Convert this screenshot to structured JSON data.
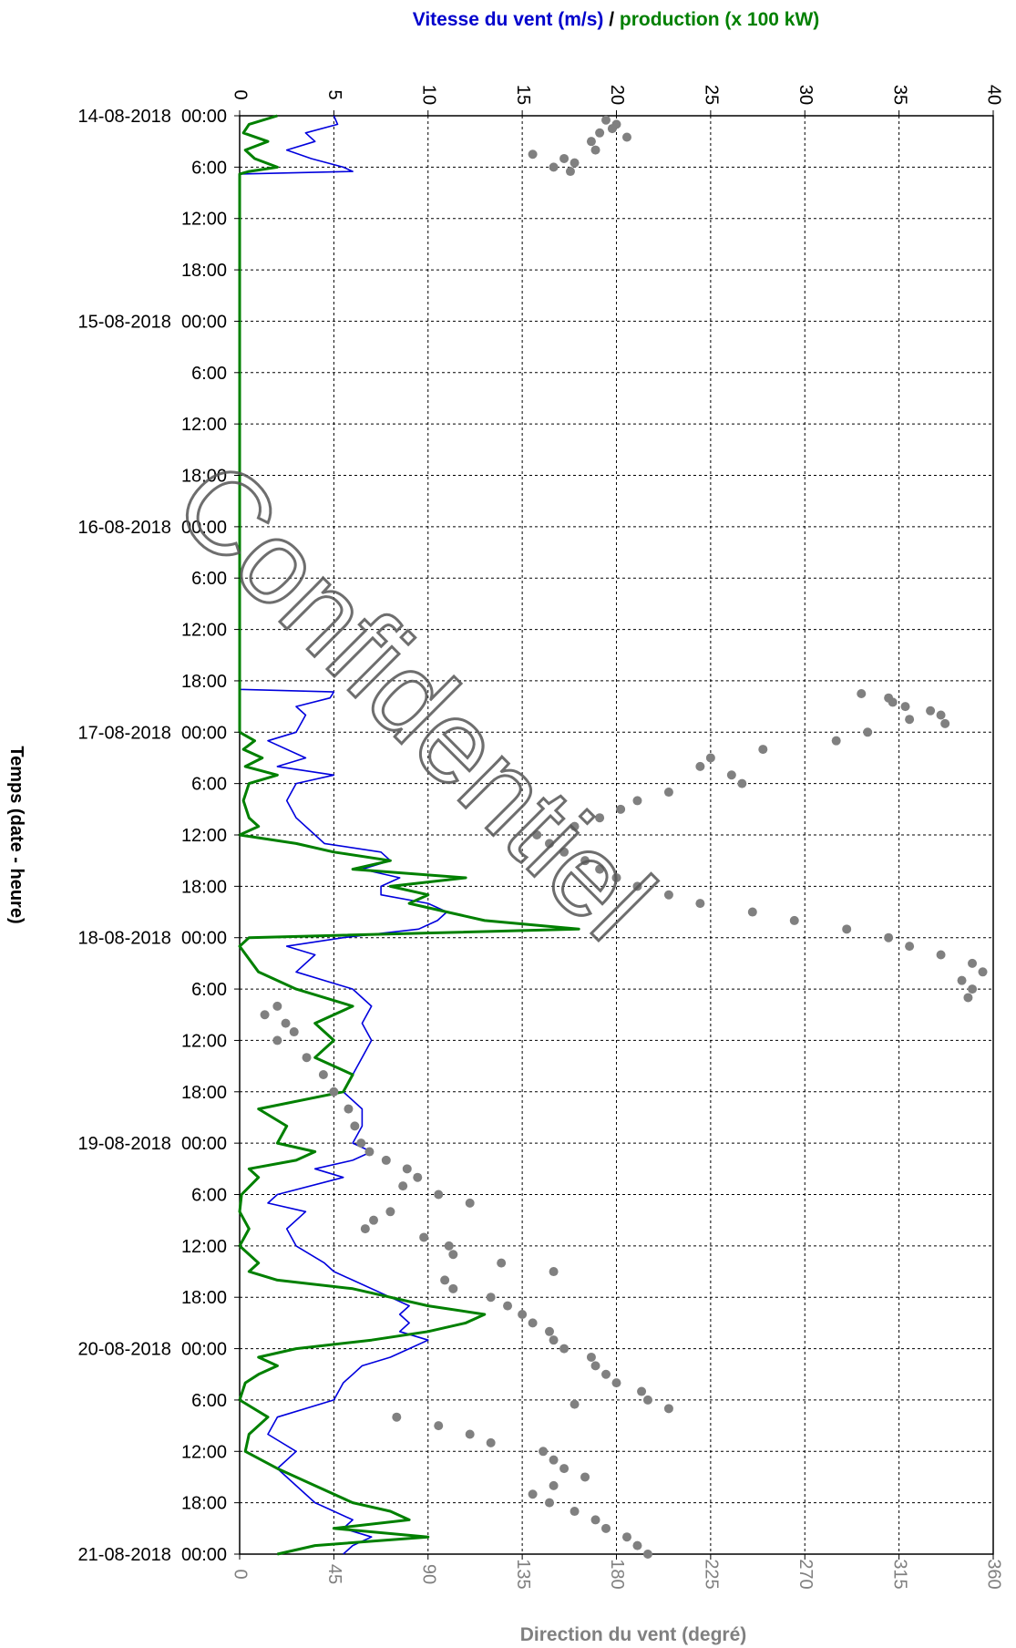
{
  "chart_data": {
    "type": "line",
    "watermark": "Confidentiel",
    "top_axis": {
      "title_parts": [
        {
          "text": "Vitesse du vent (m/s)",
          "color": "#0000cc"
        },
        {
          "text": " / ",
          "color": "#000000"
        },
        {
          "text": "production (x 100 kW)",
          "color": "#008000"
        }
      ],
      "range": [
        0,
        40
      ],
      "ticks": [
        0,
        5,
        10,
        15,
        20,
        25,
        30,
        35,
        40
      ]
    },
    "bottom_axis": {
      "title": "Direction du vent (degré)",
      "range": [
        0,
        360
      ],
      "ticks": [
        0,
        45,
        90,
        135,
        180,
        225,
        270,
        315,
        360
      ]
    },
    "left_axis": {
      "title": "Temps (date - heure)",
      "range_hours": [
        0,
        168
      ],
      "tick_labels": [
        "14-08-2018  00:00",
        "6:00",
        "12:00",
        "18:00",
        "15-08-2018  00:00",
        "6:00",
        "12:00",
        "18:00",
        "16-08-2018  00:00",
        "6:00",
        "12:00",
        "18:00",
        "17-08-2018  00:00",
        "6:00",
        "12:00",
        "18:00",
        "18-08-2018  00:00",
        "6:00",
        "12:00",
        "18:00",
        "19-08-2018  00:00",
        "6:00",
        "12:00",
        "18:00",
        "20-08-2018  00:00",
        "6:00",
        "12:00",
        "18:00",
        "21-08-2018  00:00"
      ]
    },
    "grid": true,
    "series": [
      {
        "name": "Vitesse du vent (m/s)",
        "color": "#0000dd",
        "axis": "top",
        "points": [
          [
            0,
            5
          ],
          [
            1,
            5.2
          ],
          [
            2,
            3.5
          ],
          [
            3,
            4
          ],
          [
            4,
            2.5
          ],
          [
            5,
            3.8
          ],
          [
            6,
            5.5
          ],
          [
            6.5,
            6
          ],
          [
            6.8,
            0
          ],
          [
            67,
            0
          ],
          [
            67.3,
            5
          ],
          [
            68,
            4.8
          ],
          [
            69,
            3
          ],
          [
            70,
            3.5
          ],
          [
            72,
            3
          ],
          [
            73,
            1.5
          ],
          [
            75,
            3.5
          ],
          [
            76,
            2
          ],
          [
            77,
            5
          ],
          [
            78,
            3
          ],
          [
            80,
            2.5
          ],
          [
            82,
            3
          ],
          [
            84,
            4
          ],
          [
            85,
            4.5
          ],
          [
            86,
            7.5
          ],
          [
            87,
            8
          ],
          [
            88,
            6.5
          ],
          [
            89,
            8.5
          ],
          [
            90,
            7.5
          ],
          [
            91,
            7.5
          ],
          [
            92,
            10
          ],
          [
            93,
            11
          ],
          [
            94,
            10.5
          ],
          [
            95,
            9.5
          ],
          [
            96,
            5.5
          ],
          [
            97,
            2.5
          ],
          [
            98,
            4
          ],
          [
            100,
            3
          ],
          [
            102,
            6
          ],
          [
            104,
            7
          ],
          [
            106,
            6.5
          ],
          [
            108,
            7
          ],
          [
            110,
            6.5
          ],
          [
            112,
            6
          ],
          [
            114,
            5.5
          ],
          [
            116,
            6.5
          ],
          [
            118,
            6.5
          ],
          [
            120,
            6
          ],
          [
            121,
            7
          ],
          [
            122,
            6
          ],
          [
            123,
            4
          ],
          [
            124,
            5.5
          ],
          [
            126,
            2
          ],
          [
            127,
            1.5
          ],
          [
            128,
            3.5
          ],
          [
            130,
            2.5
          ],
          [
            132,
            3
          ],
          [
            134,
            4.5
          ],
          [
            135,
            5
          ],
          [
            136,
            6
          ],
          [
            138,
            8
          ],
          [
            139,
            9
          ],
          [
            140,
            8.5
          ],
          [
            141,
            9
          ],
          [
            142,
            8.5
          ],
          [
            143,
            10
          ],
          [
            144,
            9
          ],
          [
            145,
            8
          ],
          [
            146,
            6.5
          ],
          [
            147,
            6
          ],
          [
            148,
            5.5
          ],
          [
            150,
            5
          ],
          [
            152,
            2
          ],
          [
            154,
            1.5
          ],
          [
            156,
            3
          ],
          [
            158,
            2
          ],
          [
            160,
            3
          ],
          [
            162,
            4
          ],
          [
            163,
            5
          ],
          [
            164,
            6
          ],
          [
            165,
            5.5
          ],
          [
            166,
            7
          ],
          [
            167,
            6
          ],
          [
            168,
            5.5
          ]
        ]
      },
      {
        "name": "production (x 100 kW)",
        "color": "#008000",
        "axis": "top",
        "points": [
          [
            0,
            2
          ],
          [
            1,
            0.5
          ],
          [
            2,
            0.2
          ],
          [
            3,
            1.5
          ],
          [
            4,
            0.3
          ],
          [
            5,
            0.8
          ],
          [
            6,
            2
          ],
          [
            6.5,
            0.5
          ],
          [
            6.8,
            0
          ],
          [
            67,
            0
          ],
          [
            72,
            0
          ],
          [
            73,
            0.8
          ],
          [
            74,
            0.2
          ],
          [
            75,
            1.2
          ],
          [
            76,
            0.3
          ],
          [
            77,
            2
          ],
          [
            78,
            0.5
          ],
          [
            80,
            0.2
          ],
          [
            82,
            0.5
          ],
          [
            83,
            1
          ],
          [
            84,
            0
          ],
          [
            85,
            3
          ],
          [
            86,
            5
          ],
          [
            87,
            8
          ],
          [
            88,
            6
          ],
          [
            89,
            12
          ],
          [
            90,
            8
          ],
          [
            91,
            10
          ],
          [
            92,
            9
          ],
          [
            93,
            11
          ],
          [
            94,
            13
          ],
          [
            95,
            18
          ],
          [
            96,
            0.5
          ],
          [
            97,
            0
          ],
          [
            100,
            1
          ],
          [
            102,
            3
          ],
          [
            104,
            6
          ],
          [
            106,
            4
          ],
          [
            108,
            5
          ],
          [
            110,
            4
          ],
          [
            112,
            6
          ],
          [
            114,
            5.5
          ],
          [
            116,
            1
          ],
          [
            118,
            2.5
          ],
          [
            120,
            2
          ],
          [
            121,
            4
          ],
          [
            122,
            3
          ],
          [
            123,
            0.5
          ],
          [
            124,
            1
          ],
          [
            126,
            0.1
          ],
          [
            128,
            0
          ],
          [
            130,
            0.5
          ],
          [
            132,
            0
          ],
          [
            134,
            1
          ],
          [
            135,
            0.5
          ],
          [
            136,
            2
          ],
          [
            137,
            6
          ],
          [
            138,
            8
          ],
          [
            139,
            10
          ],
          [
            140,
            13
          ],
          [
            141,
            12
          ],
          [
            142,
            10
          ],
          [
            143,
            7
          ],
          [
            144,
            3
          ],
          [
            145,
            1
          ],
          [
            146,
            2
          ],
          [
            147,
            1
          ],
          [
            148,
            0.3
          ],
          [
            150,
            0
          ],
          [
            152,
            1.5
          ],
          [
            154,
            0.5
          ],
          [
            156,
            0.3
          ],
          [
            158,
            2
          ],
          [
            160,
            4
          ],
          [
            162,
            6
          ],
          [
            163,
            8
          ],
          [
            164,
            9
          ],
          [
            165,
            5
          ],
          [
            166,
            10
          ],
          [
            167,
            4
          ],
          [
            168,
            2
          ]
        ]
      },
      {
        "name": "Direction du vent (degré)",
        "color": "#808080",
        "axis": "bottom",
        "type": "scatter",
        "points": [
          [
            0.5,
            175
          ],
          [
            1,
            180
          ],
          [
            1.5,
            178
          ],
          [
            2,
            172
          ],
          [
            2.5,
            185
          ],
          [
            3,
            168
          ],
          [
            4,
            170
          ],
          [
            4.5,
            140
          ],
          [
            5,
            155
          ],
          [
            5.5,
            160
          ],
          [
            6,
            150
          ],
          [
            6.5,
            158
          ],
          [
            67.5,
            297
          ],
          [
            68,
            310
          ],
          [
            68.5,
            312
          ],
          [
            69,
            318
          ],
          [
            69.5,
            330
          ],
          [
            70,
            335
          ],
          [
            70.5,
            320
          ],
          [
            71,
            337
          ],
          [
            72,
            300
          ],
          [
            73,
            285
          ],
          [
            74,
            250
          ],
          [
            75,
            225
          ],
          [
            76,
            220
          ],
          [
            77,
            235
          ],
          [
            78,
            240
          ],
          [
            79,
            205
          ],
          [
            80,
            190
          ],
          [
            81,
            182
          ],
          [
            82,
            172
          ],
          [
            83,
            160
          ],
          [
            84,
            142
          ],
          [
            85,
            148
          ],
          [
            86,
            155
          ],
          [
            87,
            165
          ],
          [
            88,
            172
          ],
          [
            89,
            180
          ],
          [
            90,
            190
          ],
          [
            91,
            205
          ],
          [
            92,
            220
          ],
          [
            93,
            245
          ],
          [
            94,
            265
          ],
          [
            95,
            290
          ],
          [
            96,
            310
          ],
          [
            97,
            320
          ],
          [
            98,
            335
          ],
          [
            99,
            350
          ],
          [
            100,
            355
          ],
          [
            101,
            345
          ],
          [
            102,
            350
          ],
          [
            103,
            348
          ],
          [
            104,
            18
          ],
          [
            105,
            12
          ],
          [
            106,
            22
          ],
          [
            107,
            26
          ],
          [
            108,
            18
          ],
          [
            110,
            32
          ],
          [
            112,
            40
          ],
          [
            114,
            45
          ],
          [
            116,
            52
          ],
          [
            118,
            55
          ],
          [
            120,
            58
          ],
          [
            121,
            62
          ],
          [
            122,
            70
          ],
          [
            123,
            80
          ],
          [
            124,
            85
          ],
          [
            125,
            78
          ],
          [
            126,
            95
          ],
          [
            127,
            110
          ],
          [
            128,
            72
          ],
          [
            129,
            64
          ],
          [
            130,
            60
          ],
          [
            131,
            88
          ],
          [
            132,
            100
          ],
          [
            133,
            102
          ],
          [
            134,
            125
          ],
          [
            135,
            150
          ],
          [
            136,
            98
          ],
          [
            137,
            102
          ],
          [
            138,
            120
          ],
          [
            139,
            128
          ],
          [
            140,
            135
          ],
          [
            141,
            140
          ],
          [
            142,
            148
          ],
          [
            143,
            150
          ],
          [
            144,
            155
          ],
          [
            145,
            168
          ],
          [
            146,
            170
          ],
          [
            147,
            175
          ],
          [
            148,
            180
          ],
          [
            149,
            192
          ],
          [
            150,
            195
          ],
          [
            150.5,
            160
          ],
          [
            151,
            205
          ],
          [
            152,
            75
          ],
          [
            153,
            95
          ],
          [
            154,
            110
          ],
          [
            155,
            120
          ],
          [
            156,
            145
          ],
          [
            157,
            150
          ],
          [
            158,
            155
          ],
          [
            159,
            165
          ],
          [
            160,
            150
          ],
          [
            161,
            140
          ],
          [
            162,
            148
          ],
          [
            163,
            160
          ],
          [
            164,
            170
          ],
          [
            165,
            175
          ],
          [
            166,
            185
          ],
          [
            167,
            190
          ],
          [
            168,
            195
          ]
        ]
      }
    ]
  }
}
